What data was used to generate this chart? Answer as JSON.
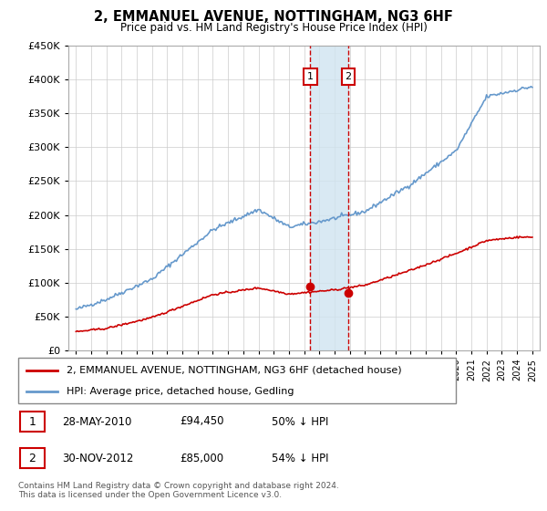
{
  "title": "2, EMMANUEL AVENUE, NOTTINGHAM, NG3 6HF",
  "subtitle": "Price paid vs. HM Land Registry's House Price Index (HPI)",
  "legend_line1": "2, EMMANUEL AVENUE, NOTTINGHAM, NG3 6HF (detached house)",
  "legend_line2": "HPI: Average price, detached house, Gedling",
  "transaction1_label": "1",
  "transaction1_date": "28-MAY-2010",
  "transaction1_price": "£94,450",
  "transaction1_hpi": "50% ↓ HPI",
  "transaction2_label": "2",
  "transaction2_date": "30-NOV-2012",
  "transaction2_price": "£85,000",
  "transaction2_hpi": "54% ↓ HPI",
  "footer": "Contains HM Land Registry data © Crown copyright and database right 2024.\nThis data is licensed under the Open Government Licence v3.0.",
  "hpi_color": "#6699cc",
  "price_color": "#cc0000",
  "annotation_color": "#cc0000",
  "highlight_color": "#d0e4f0",
  "grid_color": "#cccccc",
  "background_color": "#ffffff",
  "ylim": [
    0,
    450000
  ],
  "yticks": [
    0,
    50000,
    100000,
    150000,
    200000,
    250000,
    300000,
    350000,
    400000,
    450000
  ],
  "t1_x": 2010.4,
  "t2_x": 2012.9,
  "t1_y": 94450,
  "t2_y": 85000,
  "xlim": [
    1994.5,
    2025.5
  ]
}
